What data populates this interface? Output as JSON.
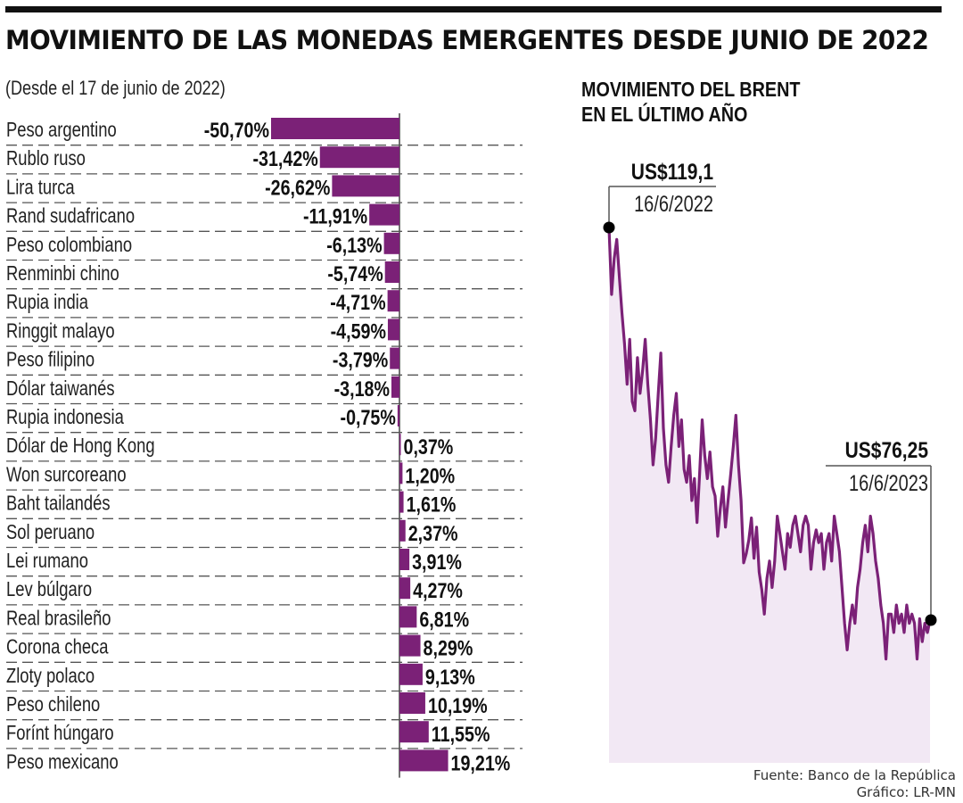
{
  "header": {
    "title": "MOVIMIENTO DE LAS MONEDAS EMERGENTES DESDE JUNIO DE 2022",
    "subtitle": "(Desde el 17 de junio de 2022)"
  },
  "colors": {
    "bar": "#7b2177",
    "line": "#7b2177",
    "area_fill": "#f2e8f4",
    "text": "#111111",
    "rule": "#555555"
  },
  "chart_data": [
    {
      "type": "bar",
      "orientation": "horizontal",
      "title": "MOVIMIENTO DE LAS MONEDAS EMERGENTES DESDE JUNIO DE 2022",
      "subtitle": "(Desde el 17 de junio de 2022)",
      "unit": "%",
      "categories": [
        "Peso argentino",
        "Rublo ruso",
        "Lira turca",
        "Rand sudafricano",
        "Peso colombiano",
        "Renminbi chino",
        "Rupia india",
        "Ringgit malayo",
        "Peso filipino",
        "Dólar taiwanés",
        "Rupia indonesia",
        "Dólar de Hong Kong",
        "Won surcoreano",
        "Baht tailandés",
        "Sol peruano",
        "Lei rumano",
        "Lev búlgaro",
        "Real brasileño",
        "Corona checa",
        "Zloty polaco",
        "Peso chileno",
        "Forínt húngaro",
        "Peso mexicano"
      ],
      "values": [
        -50.7,
        -31.42,
        -26.62,
        -11.91,
        -6.13,
        -5.74,
        -4.71,
        -4.59,
        -3.79,
        -3.18,
        -0.75,
        0.37,
        1.2,
        1.61,
        2.37,
        3.91,
        4.27,
        6.81,
        8.29,
        9.13,
        10.19,
        11.55,
        19.21
      ],
      "labels": [
        "-50,70%",
        "-31,42%",
        "-26,62%",
        "-11,91%",
        "-6,13%",
        "-5,74%",
        "-4,71%",
        "-4,59%",
        "-3,79%",
        "-3,18%",
        "-0,75%",
        "0,37%",
        "1,20%",
        "1,61%",
        "2,37%",
        "3,91%",
        "4,27%",
        "6,81%",
        "8,29%",
        "9,13%",
        "10,19%",
        "11,55%",
        "19,21%"
      ],
      "grid": "dashed row separators",
      "legend": "none"
    },
    {
      "type": "area",
      "title": "MOVIMIENTO DEL BRENT EN EL ÚLTIMO AÑO",
      "title_lines": [
        "MOVIMIENTO DEL BRENT",
        "EN EL ÚLTIMO AÑO"
      ],
      "x_start": "16/6/2022",
      "x_end": "16/6/2023",
      "unit": "US$",
      "annotations": [
        {
          "value_label": "US$119,1",
          "date_label": "16/6/2022",
          "value": 119.1,
          "position": "start"
        },
        {
          "value_label": "US$76,25",
          "date_label": "16/6/2023",
          "value": 76.25,
          "position": "end"
        }
      ],
      "values": [
        119.1,
        111.8,
        115.7,
        117.8,
        113.7,
        109.8,
        106.4,
        102.0,
        106.9,
        100.1,
        99.1,
        104.9,
        101.0,
        103.5,
        106.9,
        102.0,
        98.1,
        93.2,
        96.1,
        100.9,
        105.4,
        97.2,
        93.2,
        91.3,
        95.2,
        98.6,
        101.0,
        95.2,
        98.1,
        92.7,
        91.3,
        94.2,
        89.3,
        91.7,
        86.9,
        92.2,
        98.1,
        94.2,
        91.7,
        94.6,
        90.8,
        89.8,
        85.4,
        88.4,
        90.8,
        86.4,
        89.3,
        92.2,
        95.2,
        98.6,
        93.2,
        89.3,
        82.5,
        83.5,
        85.0,
        87.4,
        83.0,
        86.4,
        81.5,
        79.6,
        76.9,
        80.8,
        82.7,
        79.8,
        82.7,
        87.6,
        85.7,
        83.7,
        81.8,
        85.7,
        84.2,
        86.6,
        87.6,
        85.7,
        83.7,
        86.6,
        87.6,
        86.6,
        81.8,
        84.7,
        86.1,
        84.7,
        85.7,
        81.8,
        84.7,
        85.7,
        82.7,
        87.6,
        85.7,
        83.7,
        79.8,
        75.9,
        73.0,
        75.9,
        77.9,
        75.9,
        79.8,
        81.8,
        84.7,
        86.6,
        83.7,
        87.6,
        85.7,
        82.7,
        80.8,
        77.9,
        75.9,
        72.0,
        76.9,
        76.9,
        74.9,
        77.9,
        75.9,
        76.9,
        74.9,
        77.9,
        75.9,
        76.9,
        75.9,
        72.0,
        76.4,
        73.9,
        75.9,
        74.9,
        76.25
      ],
      "ylim": [
        60,
        119.1
      ],
      "grid": "off",
      "legend": "none"
    }
  ],
  "footer": {
    "source": "Fuente: Banco de la República",
    "credit": "Gráfico: LR-MN"
  }
}
